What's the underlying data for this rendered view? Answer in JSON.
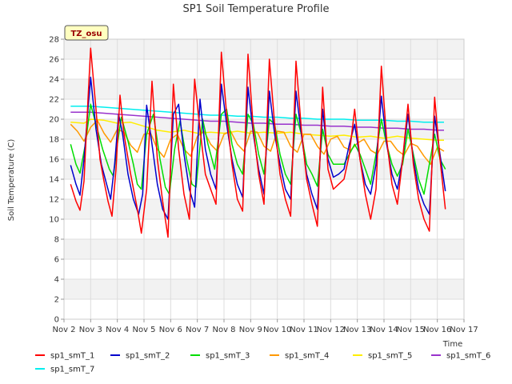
{
  "chart_data": {
    "type": "line",
    "title": "SP1 Soil Temperature Profile",
    "xlabel": "Time",
    "ylabel": "Soil Temperature (C)",
    "badge": "TZ_osu",
    "xlim": [
      2.0,
      17.0
    ],
    "ylim": [
      0,
      28
    ],
    "xticks": [
      {
        "value": 2,
        "label": "Nov 2"
      },
      {
        "value": 3,
        "label": "Nov 3"
      },
      {
        "value": 4,
        "label": "Nov 4"
      },
      {
        "value": 5,
        "label": "Nov 5"
      },
      {
        "value": 6,
        "label": "Nov 6"
      },
      {
        "value": 7,
        "label": "Nov 7"
      },
      {
        "value": 8,
        "label": "Nov 8"
      },
      {
        "value": 9,
        "label": "Nov 9"
      },
      {
        "value": 10,
        "label": "Nov 10"
      },
      {
        "value": 11,
        "label": "Nov 11"
      },
      {
        "value": 12,
        "label": "Nov 12"
      },
      {
        "value": 13,
        "label": "Nov 13"
      },
      {
        "value": 14,
        "label": "Nov 14"
      },
      {
        "value": 15,
        "label": "Nov 15"
      },
      {
        "value": 16,
        "label": "Nov 16"
      },
      {
        "value": 17,
        "label": "Nov 17"
      }
    ],
    "yticks": [
      0,
      2,
      4,
      6,
      8,
      10,
      12,
      14,
      16,
      18,
      20,
      22,
      24,
      26,
      28
    ],
    "grid": true,
    "legend_position": "bottom",
    "x_note": "x values are day-of-month in November (fractional)",
    "series": [
      {
        "name": "sp1_smT_1",
        "color": "#ff0000",
        "x": [
          2.25,
          2.45,
          2.6,
          2.75,
          2.9,
          3.0,
          3.2,
          3.35,
          3.5,
          3.65,
          3.8,
          3.95,
          4.1,
          4.25,
          4.5,
          4.75,
          4.9,
          5.1,
          5.3,
          5.5,
          5.7,
          5.9,
          6.1,
          6.3,
          6.5,
          6.7,
          6.9,
          7.1,
          7.3,
          7.5,
          7.7,
          7.9,
          8.1,
          8.3,
          8.5,
          8.7,
          8.9,
          9.1,
          9.3,
          9.5,
          9.7,
          9.9,
          10.1,
          10.3,
          10.5,
          10.7,
          10.9,
          11.1,
          11.3,
          11.5,
          11.7,
          11.9,
          12.1,
          12.3,
          12.5,
          12.7,
          12.9,
          13.1,
          13.3,
          13.5,
          13.7,
          13.9,
          14.1,
          14.3,
          14.5,
          14.7,
          14.9,
          15.1,
          15.3,
          15.5,
          15.7,
          15.9,
          16.1,
          16.3
        ],
        "values": [
          13.5,
          11.8,
          10.9,
          13.8,
          22.0,
          27.1,
          21.0,
          16.0,
          13.8,
          11.8,
          10.3,
          15.0,
          22.4,
          18.5,
          14.5,
          11.0,
          8.6,
          13.0,
          23.8,
          16.0,
          11.8,
          8.2,
          23.5,
          17.0,
          12.5,
          10.0,
          24.0,
          19.0,
          14.5,
          13.0,
          11.5,
          26.7,
          20.5,
          15.5,
          12.0,
          10.8,
          26.5,
          19.0,
          14.5,
          11.5,
          26.0,
          19.5,
          14.5,
          12.0,
          10.3,
          25.8,
          19.0,
          14.0,
          11.5,
          9.3,
          23.2,
          15.0,
          13.0,
          13.5,
          14.0,
          16.5,
          21.0,
          16.0,
          12.5,
          10.0,
          13.0,
          25.3,
          18.0,
          13.5,
          11.5,
          16.0,
          21.5,
          15.5,
          12.0,
          10.0,
          8.8,
          22.2,
          16.0,
          11.0
        ]
      },
      {
        "name": "sp1_smT_2",
        "color": "#0000cc",
        "x": [
          2.25,
          2.45,
          2.6,
          2.75,
          2.9,
          3.0,
          3.2,
          3.4,
          3.6,
          3.75,
          3.9,
          4.05,
          4.2,
          4.4,
          4.6,
          4.8,
          4.95,
          5.1,
          5.3,
          5.5,
          5.7,
          5.9,
          6.1,
          6.3,
          6.5,
          6.7,
          6.9,
          7.1,
          7.3,
          7.5,
          7.7,
          7.9,
          8.1,
          8.3,
          8.5,
          8.7,
          8.9,
          9.1,
          9.3,
          9.5,
          9.7,
          9.9,
          10.1,
          10.3,
          10.5,
          10.7,
          10.9,
          11.1,
          11.3,
          11.5,
          11.7,
          11.9,
          12.1,
          12.3,
          12.5,
          12.7,
          12.9,
          13.1,
          13.3,
          13.5,
          13.7,
          13.9,
          14.1,
          14.3,
          14.5,
          14.7,
          14.9,
          15.1,
          15.3,
          15.5,
          15.7,
          15.9,
          16.1,
          16.3
        ],
        "values": [
          15.4,
          13.5,
          12.4,
          16.0,
          21.0,
          24.2,
          19.0,
          15.5,
          13.5,
          12.0,
          15.5,
          20.5,
          18.5,
          14.5,
          12.0,
          10.5,
          12.5,
          21.4,
          17.5,
          13.5,
          11.0,
          10.0,
          20.5,
          21.5,
          16.5,
          13.0,
          11.2,
          22.0,
          17.0,
          14.5,
          13.0,
          23.5,
          19.5,
          16.0,
          13.5,
          12.2,
          23.2,
          18.5,
          15.0,
          12.5,
          22.8,
          18.5,
          15.5,
          13.0,
          12.0,
          22.8,
          18.5,
          14.5,
          12.5,
          11.0,
          21.0,
          16.0,
          14.2,
          14.5,
          15.0,
          17.5,
          19.5,
          16.0,
          13.5,
          12.5,
          15.5,
          22.3,
          17.5,
          14.5,
          13.0,
          16.0,
          20.5,
          16.0,
          13.0,
          11.5,
          10.5,
          20.3,
          16.5,
          12.8
        ]
      },
      {
        "name": "sp1_smT_3",
        "color": "#00dd00",
        "x": [
          2.25,
          2.45,
          2.6,
          2.8,
          3.0,
          3.2,
          3.45,
          3.7,
          3.85,
          4.0,
          4.15,
          4.4,
          4.6,
          4.75,
          4.9,
          5.1,
          5.35,
          5.6,
          5.8,
          5.95,
          6.15,
          6.35,
          6.6,
          6.8,
          6.95,
          7.2,
          7.4,
          7.65,
          7.9,
          8.1,
          8.3,
          8.5,
          8.7,
          8.9,
          9.1,
          9.3,
          9.5,
          9.7,
          9.9,
          10.1,
          10.3,
          10.5,
          10.7,
          10.9,
          11.1,
          11.3,
          11.5,
          11.7,
          11.9,
          12.1,
          12.3,
          12.5,
          12.7,
          12.9,
          13.1,
          13.3,
          13.5,
          13.7,
          13.9,
          14.1,
          14.3,
          14.5,
          14.7,
          14.9,
          15.1,
          15.3,
          15.5,
          15.7,
          15.9,
          16.1,
          16.3
        ],
        "values": [
          17.5,
          15.5,
          14.6,
          17.5,
          21.5,
          19.5,
          17.0,
          15.0,
          14.3,
          17.5,
          20.2,
          17.8,
          15.5,
          13.5,
          13.0,
          18.5,
          20.5,
          16.0,
          13.2,
          12.5,
          17.0,
          19.8,
          16.0,
          13.5,
          13.2,
          20.0,
          17.5,
          15.0,
          20.5,
          21.0,
          17.5,
          15.5,
          14.5,
          20.5,
          19.5,
          16.5,
          14.5,
          20.0,
          19.5,
          16.5,
          14.5,
          13.5,
          20.5,
          18.5,
          15.5,
          14.5,
          13.3,
          19.0,
          16.5,
          15.5,
          15.5,
          15.5,
          16.5,
          17.5,
          16.5,
          15.0,
          13.5,
          16.5,
          20.0,
          17.5,
          15.5,
          14.3,
          15.5,
          19.0,
          16.5,
          14.0,
          12.5,
          15.5,
          18.5,
          16.0,
          15.0
        ]
      },
      {
        "name": "sp1_smT_4",
        "color": "#ff9900",
        "x": [
          2.25,
          2.5,
          2.75,
          3.0,
          3.25,
          3.5,
          3.75,
          4.0,
          4.25,
          4.5,
          4.75,
          5.0,
          5.25,
          5.5,
          5.75,
          6.0,
          6.25,
          6.5,
          6.75,
          7.0,
          7.25,
          7.5,
          7.75,
          8.0,
          8.25,
          8.5,
          8.75,
          9.0,
          9.25,
          9.5,
          9.75,
          10.0,
          10.25,
          10.5,
          10.75,
          11.0,
          11.25,
          11.5,
          11.75,
          12.0,
          12.25,
          12.5,
          12.75,
          13.0,
          13.25,
          13.5,
          13.75,
          14.0,
          14.25,
          14.5,
          14.75,
          15.0,
          15.25,
          15.5,
          15.75,
          16.0,
          16.25
        ],
        "values": [
          19.5,
          18.8,
          17.8,
          19.2,
          19.9,
          18.6,
          17.7,
          19.0,
          18.7,
          17.4,
          16.7,
          18.5,
          18.6,
          17.0,
          16.2,
          18.0,
          18.5,
          17.0,
          16.3,
          18.3,
          18.8,
          17.5,
          16.8,
          18.5,
          18.8,
          17.5,
          16.8,
          18.8,
          18.7,
          17.3,
          16.8,
          18.8,
          18.7,
          17.3,
          16.7,
          18.5,
          18.5,
          17.3,
          16.5,
          18.0,
          18.3,
          17.2,
          16.9,
          17.6,
          18.0,
          16.9,
          16.5,
          17.8,
          17.8,
          16.9,
          16.4,
          17.6,
          17.3,
          16.3,
          15.5,
          17.2,
          16.8
        ]
      },
      {
        "name": "sp1_smT_5",
        "color": "#ffee00",
        "x": [
          2.25,
          2.75,
          3.0,
          3.5,
          4.0,
          4.5,
          5.0,
          5.5,
          6.0,
          6.5,
          7.0,
          7.5,
          8.0,
          8.5,
          9.0,
          9.5,
          10.0,
          10.5,
          11.0,
          11.5,
          12.0,
          12.5,
          13.0,
          13.5,
          14.0,
          14.5,
          15.0,
          15.5,
          16.0,
          16.25
        ],
        "values": [
          19.7,
          19.6,
          20.0,
          19.9,
          19.6,
          19.7,
          19.3,
          18.9,
          18.7,
          18.9,
          18.6,
          18.7,
          18.6,
          18.8,
          18.6,
          18.7,
          18.6,
          18.7,
          18.5,
          18.4,
          18.3,
          18.4,
          18.2,
          18.3,
          18.1,
          18.3,
          18.1,
          18.0,
          17.9,
          17.9
        ]
      },
      {
        "name": "sp1_smT_6",
        "color": "#9933cc",
        "x": [
          2.25,
          3.0,
          3.5,
          4.0,
          4.5,
          5.0,
          5.5,
          6.0,
          6.5,
          7.0,
          7.5,
          8.0,
          8.5,
          9.0,
          9.5,
          10.0,
          10.5,
          11.0,
          11.5,
          12.0,
          12.5,
          13.0,
          13.5,
          14.0,
          14.5,
          15.0,
          15.5,
          16.0,
          16.25
        ],
        "values": [
          20.7,
          20.7,
          20.6,
          20.5,
          20.4,
          20.3,
          20.2,
          20.1,
          20.0,
          19.9,
          19.8,
          19.8,
          19.7,
          19.6,
          19.6,
          19.5,
          19.5,
          19.4,
          19.4,
          19.3,
          19.3,
          19.2,
          19.2,
          19.1,
          19.1,
          19.0,
          19.0,
          18.9,
          18.9
        ]
      },
      {
        "name": "sp1_smT_7",
        "color": "#00eeee",
        "x": [
          2.25,
          3.0,
          3.5,
          4.0,
          4.5,
          5.0,
          5.5,
          6.0,
          6.5,
          7.0,
          7.5,
          8.0,
          8.5,
          9.0,
          9.5,
          10.0,
          10.5,
          11.0,
          11.5,
          12.0,
          12.5,
          13.0,
          13.5,
          14.0,
          14.5,
          15.0,
          15.5,
          16.0,
          16.25
        ],
        "values": [
          21.3,
          21.3,
          21.2,
          21.1,
          21.0,
          20.9,
          20.8,
          20.7,
          20.6,
          20.5,
          20.4,
          20.4,
          20.3,
          20.3,
          20.2,
          20.2,
          20.1,
          20.1,
          20.0,
          20.0,
          20.0,
          19.9,
          19.9,
          19.9,
          19.8,
          19.8,
          19.7,
          19.7,
          19.7
        ]
      }
    ]
  }
}
